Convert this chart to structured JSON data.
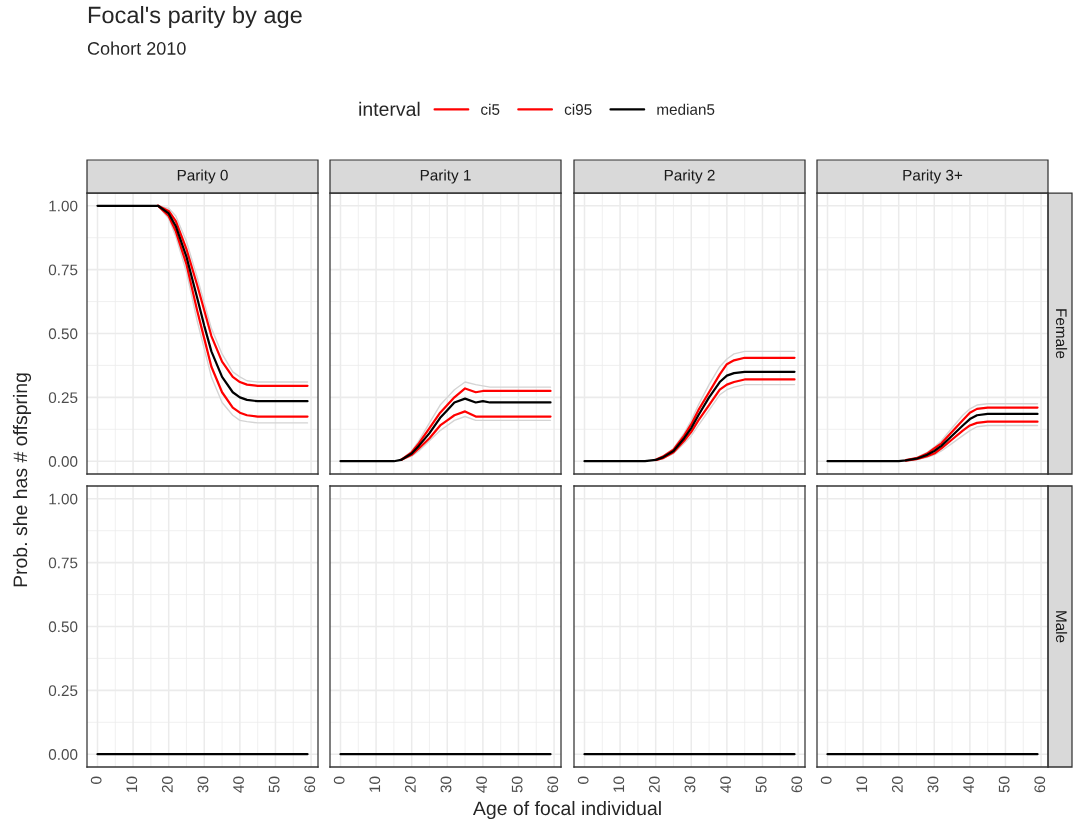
{
  "chart_data": [
    {
      "type": "line",
      "title": "Focal's parity by age",
      "subtitle": "Cohort 2010",
      "ylabel": "Prob. she has # offspring",
      "legend_title": "interval",
      "legend": "top",
      "annotations": [
        "Parity 0"
      ],
      "grid": true,
      "tick_labels": "y",
      "xlim": [
        -2.95,
        61.95
      ],
      "ylim": [
        -0.05,
        1.05
      ],
      "xticks": [
        0,
        10,
        20,
        30,
        40,
        50,
        60
      ],
      "yticks": [
        {
          "value": 0,
          "label": "0.00"
        },
        {
          "value": 0.25,
          "label": "0.25"
        },
        {
          "value": 0.5,
          "label": "0.50"
        },
        {
          "value": 0.75,
          "label": "0.75"
        },
        {
          "value": 1,
          "label": "1.00"
        }
      ],
      "x": [
        0,
        5,
        10,
        15,
        17,
        20,
        22,
        25,
        28,
        30,
        32,
        35,
        38,
        40,
        42,
        45,
        50,
        55,
        59
      ],
      "series": [
        {
          "color": "#d4d4d4",
          "values": [
            null,
            null,
            null,
            null,
            1,
            0.95,
            0.88,
            0.74,
            0.55,
            0.44,
            0.33,
            0.23,
            0.18,
            0.16,
            0.155,
            0.15,
            0.15,
            0.15,
            0.15
          ]
        },
        {
          "color": "#d4d4d4",
          "values": [
            null,
            null,
            null,
            null,
            1,
            0.99,
            0.96,
            0.86,
            0.72,
            0.62,
            0.52,
            0.42,
            0.35,
            0.33,
            0.315,
            0.31,
            0.31,
            0.31,
            0.31
          ]
        },
        {
          "name": "ci5",
          "color": "#ff0000",
          "values": [
            null,
            null,
            null,
            null,
            1,
            0.96,
            0.9,
            0.77,
            0.59,
            0.48,
            0.37,
            0.27,
            0.21,
            0.19,
            0.18,
            0.175,
            0.175,
            0.175,
            0.175
          ]
        },
        {
          "name": "ci95",
          "color": "#ff0000",
          "values": [
            null,
            null,
            null,
            null,
            1,
            0.98,
            0.94,
            0.83,
            0.69,
            0.59,
            0.49,
            0.39,
            0.33,
            0.31,
            0.3,
            0.295,
            0.295,
            0.295,
            0.295
          ]
        },
        {
          "name": "median5",
          "color": "#000000",
          "values": [
            1,
            1,
            1,
            1,
            1,
            0.97,
            0.92,
            0.8,
            0.64,
            0.53,
            0.43,
            0.33,
            0.27,
            0.25,
            0.24,
            0.235,
            0.235,
            0.235,
            0.235
          ]
        }
      ]
    },
    {
      "type": "line",
      "annotations": [
        "Parity 1"
      ],
      "grid": true,
      "tick_labels": false,
      "xlim": [
        -2.95,
        61.95
      ],
      "ylim": [
        -0.05,
        1.05
      ],
      "x": [
        0,
        5,
        10,
        15,
        17,
        20,
        22,
        25,
        28,
        30,
        32,
        35,
        38,
        40,
        42,
        45,
        50,
        55,
        59
      ],
      "series": [
        {
          "color": "#d4d4d4",
          "values": [
            null,
            null,
            null,
            null,
            0.005,
            0.02,
            0.04,
            0.08,
            0.12,
            0.14,
            0.16,
            0.175,
            0.16,
            0.16,
            0.16,
            0.16,
            0.16,
            0.16,
            0.16
          ]
        },
        {
          "color": "#d4d4d4",
          "values": [
            null,
            null,
            null,
            null,
            0.005,
            0.04,
            0.08,
            0.15,
            0.22,
            0.25,
            0.28,
            0.31,
            0.3,
            0.295,
            0.29,
            0.29,
            0.29,
            0.29,
            0.29
          ]
        },
        {
          "name": "ci5",
          "color": "#ff0000",
          "values": [
            null,
            null,
            null,
            null,
            0.005,
            0.025,
            0.05,
            0.09,
            0.14,
            0.16,
            0.18,
            0.195,
            0.175,
            0.175,
            0.175,
            0.175,
            0.175,
            0.175,
            0.175
          ]
        },
        {
          "name": "ci95",
          "color": "#ff0000",
          "values": [
            null,
            null,
            null,
            null,
            0.005,
            0.035,
            0.07,
            0.13,
            0.19,
            0.22,
            0.25,
            0.285,
            0.27,
            0.275,
            0.275,
            0.275,
            0.275,
            0.275,
            0.275
          ]
        },
        {
          "name": "median5",
          "color": "#000000",
          "values": [
            0,
            0,
            0,
            0,
            0.005,
            0.03,
            0.06,
            0.11,
            0.17,
            0.2,
            0.23,
            0.245,
            0.23,
            0.235,
            0.23,
            0.23,
            0.23,
            0.23,
            0.23
          ]
        }
      ]
    },
    {
      "type": "line",
      "annotations": [
        "Parity 2"
      ],
      "grid": true,
      "tick_labels": false,
      "xlim": [
        -2.95,
        61.95
      ],
      "ylim": [
        -0.05,
        1.05
      ],
      "x": [
        0,
        5,
        10,
        15,
        17,
        20,
        22,
        25,
        28,
        30,
        32,
        35,
        38,
        40,
        42,
        45,
        50,
        55,
        59
      ],
      "series": [
        {
          "color": "#d4d4d4",
          "values": [
            null,
            null,
            null,
            null,
            null,
            0.003,
            0.01,
            0.03,
            0.07,
            0.1,
            0.14,
            0.2,
            0.26,
            0.28,
            0.29,
            0.3,
            0.3,
            0.3,
            0.3
          ]
        },
        {
          "color": "#d4d4d4",
          "values": [
            null,
            null,
            null,
            null,
            null,
            0.007,
            0.02,
            0.05,
            0.11,
            0.16,
            0.22,
            0.3,
            0.37,
            0.4,
            0.42,
            0.43,
            0.43,
            0.43,
            0.43
          ]
        },
        {
          "name": "ci5",
          "color": "#ff0000",
          "values": [
            null,
            null,
            null,
            null,
            null,
            0.004,
            0.012,
            0.035,
            0.08,
            0.115,
            0.16,
            0.22,
            0.28,
            0.3,
            0.31,
            0.32,
            0.32,
            0.32,
            0.32
          ]
        },
        {
          "name": "ci95",
          "color": "#ff0000",
          "values": [
            null,
            null,
            null,
            null,
            null,
            0.006,
            0.018,
            0.045,
            0.1,
            0.145,
            0.2,
            0.27,
            0.34,
            0.38,
            0.395,
            0.405,
            0.405,
            0.405,
            0.405
          ]
        },
        {
          "name": "median5",
          "color": "#000000",
          "values": [
            0,
            0,
            0,
            0,
            0,
            0.005,
            0.015,
            0.04,
            0.09,
            0.13,
            0.18,
            0.25,
            0.31,
            0.335,
            0.345,
            0.35,
            0.35,
            0.35,
            0.35
          ]
        }
      ]
    },
    {
      "type": "line",
      "annotations": [
        "Parity 3+",
        "Female"
      ],
      "grid": true,
      "tick_labels": false,
      "xlim": [
        -2.95,
        61.95
      ],
      "ylim": [
        -0.05,
        1.05
      ],
      "x": [
        0,
        5,
        10,
        15,
        17,
        20,
        22,
        25,
        28,
        30,
        32,
        35,
        38,
        40,
        42,
        45,
        50,
        55,
        59
      ],
      "series": [
        {
          "color": "#d4d4d4",
          "values": [
            null,
            null,
            null,
            null,
            null,
            null,
            0.002,
            0.006,
            0.015,
            0.025,
            0.04,
            0.07,
            0.1,
            0.12,
            0.135,
            0.14,
            0.14,
            0.14,
            0.14
          ]
        },
        {
          "color": "#d4d4d4",
          "values": [
            null,
            null,
            null,
            null,
            null,
            null,
            0.005,
            0.014,
            0.035,
            0.055,
            0.08,
            0.13,
            0.18,
            0.205,
            0.22,
            0.225,
            0.225,
            0.225,
            0.225
          ]
        },
        {
          "name": "ci5",
          "color": "#ff0000",
          "values": [
            null,
            null,
            null,
            null,
            null,
            null,
            0.002,
            0.008,
            0.02,
            0.03,
            0.05,
            0.085,
            0.12,
            0.14,
            0.15,
            0.155,
            0.155,
            0.155,
            0.155
          ]
        },
        {
          "name": "ci95",
          "color": "#ff0000",
          "values": [
            null,
            null,
            null,
            null,
            null,
            null,
            0.004,
            0.012,
            0.03,
            0.05,
            0.07,
            0.115,
            0.16,
            0.19,
            0.205,
            0.21,
            0.21,
            0.21,
            0.21
          ]
        },
        {
          "name": "median5",
          "color": "#000000",
          "values": [
            0,
            0,
            0,
            0,
            0,
            0,
            0.003,
            0.01,
            0.025,
            0.04,
            0.06,
            0.1,
            0.14,
            0.165,
            0.18,
            0.185,
            0.185,
            0.185,
            0.185
          ]
        }
      ]
    },
    {
      "type": "line",
      "grid": true,
      "xlim": [
        -2.95,
        61.95
      ],
      "ylim": [
        -0.05,
        1.05
      ],
      "xticks": [
        0,
        10,
        20,
        30,
        40,
        50,
        60
      ],
      "yticks": [
        {
          "value": 0,
          "label": "0.00"
        },
        {
          "value": 0.25,
          "label": "0.25"
        },
        {
          "value": 0.5,
          "label": "0.50"
        },
        {
          "value": 0.75,
          "label": "0.75"
        },
        {
          "value": 1,
          "label": "1.00"
        }
      ],
      "x": [
        0,
        59
      ],
      "series": [
        {
          "name": "median5",
          "color": "#000000",
          "values": [
            0,
            0
          ]
        }
      ]
    },
    {
      "type": "line",
      "xlabel": "Age of focal individual",
      "grid": true,
      "tick_labels": "x",
      "xlim": [
        -2.95,
        61.95
      ],
      "ylim": [
        -0.05,
        1.05
      ],
      "xticks": [
        0,
        10,
        20,
        30,
        40,
        50,
        60
      ],
      "x": [
        0,
        59
      ],
      "series": [
        {
          "name": "median5",
          "color": "#000000",
          "values": [
            0,
            0
          ]
        }
      ]
    },
    {
      "type": "line",
      "grid": true,
      "tick_labels": "x",
      "xlim": [
        -2.95,
        61.95
      ],
      "ylim": [
        -0.05,
        1.05
      ],
      "xticks": [
        0,
        10,
        20,
        30,
        40,
        50,
        60
      ],
      "x": [
        0,
        59
      ],
      "series": [
        {
          "name": "median5",
          "color": "#000000",
          "values": [
            0,
            0
          ]
        }
      ]
    },
    {
      "type": "line",
      "annotations": [
        "Male"
      ],
      "grid": true,
      "tick_labels": "x",
      "xlim": [
        -2.95,
        61.95
      ],
      "ylim": [
        -0.05,
        1.05
      ],
      "xticks": [
        0,
        10,
        20,
        30,
        40,
        50,
        60
      ],
      "x": [
        0,
        59
      ],
      "series": [
        {
          "name": "median5",
          "color": "#000000",
          "values": [
            0,
            0
          ]
        }
      ]
    }
  ]
}
